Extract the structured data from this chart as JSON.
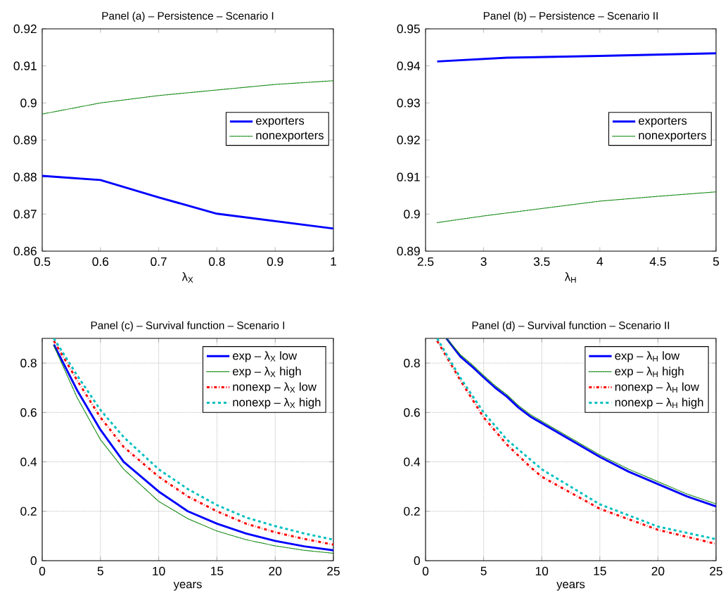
{
  "chart_data": [
    {
      "type": "line",
      "title": "Panel (a) – Persistence – Scenario I",
      "xlabel": "λ$_{X}$",
      "xlim": [
        0.5,
        1
      ],
      "ylim": [
        0.86,
        0.92
      ],
      "xticks": [
        0.5,
        0.6,
        0.7,
        0.8,
        0.9,
        1
      ],
      "yticks": [
        0.86,
        0.87,
        0.88,
        0.89,
        0.9,
        0.91,
        0.92
      ],
      "grid": false,
      "legend": "right",
      "series": [
        {
          "name": "exporters",
          "color": "#0000ff",
          "line_style": "solid",
          "x": [
            0.5,
            0.6,
            0.7,
            0.8,
            0.9,
            1
          ],
          "values": [
            0.8803,
            0.8792,
            0.8745,
            0.8701,
            0.8681,
            0.8661
          ]
        },
        {
          "name": "nonexporters",
          "color": "#008000",
          "line_style": "dotted",
          "x": [
            0.5,
            0.6,
            0.7,
            0.8,
            0.9,
            1
          ],
          "values": [
            0.897,
            0.9,
            0.902,
            0.9035,
            0.905,
            0.906
          ]
        }
      ]
    },
    {
      "type": "line",
      "title": "Panel (b) – Persistence – Scenario II",
      "xlabel": "λ$_{H}$",
      "xlim": [
        2.5,
        5
      ],
      "ylim": [
        0.89,
        0.95
      ],
      "xticks": [
        2.5,
        3,
        3.5,
        4,
        4.5,
        5
      ],
      "yticks": [
        0.89,
        0.9,
        0.91,
        0.92,
        0.93,
        0.94,
        0.95
      ],
      "grid": false,
      "legend": "right",
      "series": [
        {
          "name": "exporters",
          "color": "#0000ff",
          "line_style": "solid",
          "x": [
            2.6,
            3.2,
            4,
            5
          ],
          "values": [
            0.9412,
            0.9422,
            0.9427,
            0.9434
          ]
        },
        {
          "name": "nonexporters",
          "color": "#008000",
          "line_style": "dotted",
          "x": [
            2.6,
            3,
            3.5,
            4,
            4.5,
            5
          ],
          "values": [
            0.8977,
            0.8995,
            0.9015,
            0.9035,
            0.9048,
            0.906
          ]
        }
      ]
    },
    {
      "type": "line",
      "title": "Panel (c) – Survival function – Scenario I",
      "xlabel": "years",
      "xlim": [
        0,
        25
      ],
      "ylim": [
        0,
        0.9
      ],
      "xticks": [
        0,
        5,
        10,
        15,
        20,
        25
      ],
      "yticks": [
        0,
        0.2,
        0.4,
        0.6,
        0.8
      ],
      "grid": true,
      "legend": "top right",
      "series": [
        {
          "name": "exp – λ$_{X}$ low",
          "color": "#0000ff",
          "line_style": "solid",
          "x": [
            1,
            3,
            5,
            7,
            10,
            12.5,
            15,
            17.5,
            20,
            22.5,
            25
          ],
          "values": [
            0.875,
            0.69,
            0.53,
            0.4,
            0.28,
            0.2,
            0.15,
            0.11,
            0.08,
            0.058,
            0.042
          ]
        },
        {
          "name": "exp – λ$_{X}$ high",
          "color": "#008000",
          "line_style": "dotted",
          "x": [
            1,
            3,
            5,
            7,
            10,
            12.5,
            15,
            17.5,
            20,
            22.5,
            25
          ],
          "values": [
            0.87,
            0.66,
            0.49,
            0.37,
            0.24,
            0.17,
            0.12,
            0.085,
            0.06,
            0.042,
            0.03
          ]
        },
        {
          "name": "nonexp – λ$_{X}$ low",
          "color": "#ff0000",
          "line_style": "dashdot",
          "x": [
            1,
            3,
            5,
            7,
            10,
            12.5,
            15,
            17.5,
            20,
            22.5,
            25
          ],
          "values": [
            0.89,
            0.73,
            0.58,
            0.46,
            0.34,
            0.26,
            0.2,
            0.15,
            0.115,
            0.088,
            0.065
          ]
        },
        {
          "name": "nonexp – λ$_{X}$ high",
          "color": "#00bfbf",
          "line_style": "dashed",
          "x": [
            1,
            3,
            5,
            7,
            10,
            12.5,
            15,
            17.5,
            20,
            22.5,
            25
          ],
          "values": [
            0.9,
            0.75,
            0.61,
            0.5,
            0.37,
            0.29,
            0.225,
            0.175,
            0.14,
            0.11,
            0.085
          ]
        }
      ]
    },
    {
      "type": "line",
      "title": "Panel (d) – Survival function – Scenario II",
      "xlabel": "years",
      "xlim": [
        0,
        25
      ],
      "ylim": [
        0,
        0.9
      ],
      "xticks": [
        0,
        5,
        10,
        15,
        20,
        25
      ],
      "yticks": [
        0,
        0.2,
        0.4,
        0.6,
        0.8
      ],
      "grid": true,
      "legend": "top right",
      "series": [
        {
          "name": "exp – λ$_{H}$ low",
          "color": "#0000ff",
          "line_style": "solid",
          "x": [
            1.8,
            3,
            4,
            5,
            6,
            7,
            8,
            9,
            15,
            17.5,
            20,
            22.5,
            25
          ],
          "values": [
            0.9,
            0.826,
            0.786,
            0.742,
            0.7,
            0.664,
            0.62,
            0.584,
            0.42,
            0.36,
            0.31,
            0.26,
            0.22
          ]
        },
        {
          "name": "exp – λ$_{H}$ high",
          "color": "#008000",
          "line_style": "dotted",
          "x": [
            1.8,
            3,
            4,
            5,
            6,
            7,
            8,
            9,
            15,
            17.5,
            20,
            22.5,
            25
          ],
          "values": [
            0.9,
            0.834,
            0.794,
            0.75,
            0.708,
            0.672,
            0.628,
            0.592,
            0.428,
            0.37,
            0.32,
            0.27,
            0.23
          ]
        },
        {
          "name": "nonexp – λ$_{H}$ low",
          "color": "#ff0000",
          "line_style": "dashdot",
          "x": [
            1,
            3,
            5,
            7,
            9,
            10,
            15,
            20,
            25
          ],
          "values": [
            0.89,
            0.73,
            0.58,
            0.47,
            0.38,
            0.34,
            0.21,
            0.125,
            0.068
          ]
        },
        {
          "name": "nonexp – λ$_{H}$ high",
          "color": "#00bfbf",
          "line_style": "dashed",
          "x": [
            1,
            3,
            5,
            7,
            9,
            10,
            15,
            20,
            25
          ],
          "values": [
            0.9,
            0.74,
            0.6,
            0.49,
            0.41,
            0.37,
            0.228,
            0.138,
            0.087
          ]
        }
      ]
    }
  ]
}
